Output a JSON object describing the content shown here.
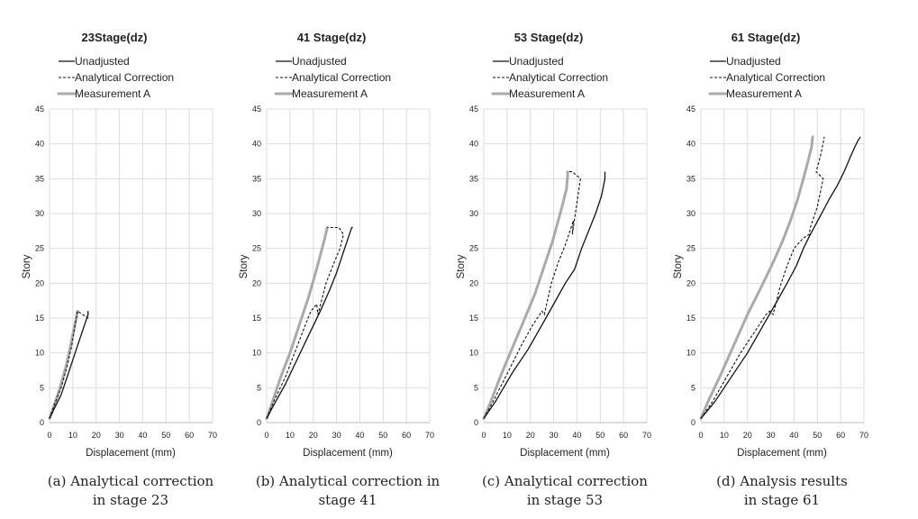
{
  "chart_data": [
    {
      "type": "line",
      "title": "23Stage(dz)",
      "xlabel": "Displacement (mm)",
      "ylabel": "Story",
      "xlim": [
        0,
        70
      ],
      "ylim": [
        0,
        45
      ],
      "xticks": [
        "0",
        "10",
        "20",
        "30",
        "40",
        "50",
        "60",
        "70"
      ],
      "yticks": [
        "0",
        "5",
        "10",
        "15",
        "20",
        "25",
        "30",
        "35",
        "40",
        "45"
      ],
      "grid": true,
      "legend_position": "top-left",
      "series": [
        {
          "name": "Unadjusted",
          "style": "solid",
          "color": "#111111",
          "x": [
            0,
            2,
            5,
            8,
            11,
            13,
            15,
            16.5,
            16.5
          ],
          "y": [
            0.6,
            2,
            4,
            7,
            10,
            12,
            14,
            15.5,
            16
          ]
        },
        {
          "name": "Analytical Correction",
          "style": "dashed",
          "color": "#111111",
          "x": [
            0,
            2,
            5,
            7.5,
            9.5,
            11,
            12,
            16.5,
            16.5
          ],
          "y": [
            0.6,
            2.5,
            5,
            8,
            11,
            14,
            16,
            15,
            16
          ]
        },
        {
          "name": "Measurement A",
          "style": "thick",
          "color": "#aaaaaa",
          "x": [
            0,
            2,
            4.5,
            7,
            9,
            10.5,
            11.5,
            12
          ],
          "y": [
            0.6,
            2.5,
            5,
            8,
            11,
            13.5,
            15,
            16
          ]
        }
      ],
      "caption": [
        "(a) Analytical correction",
        "in stage 23"
      ]
    },
    {
      "type": "line",
      "title": "41 Stage(dz)",
      "xlabel": "Displacement (mm)",
      "ylabel": "Story",
      "xlim": [
        0,
        70
      ],
      "ylim": [
        0,
        45
      ],
      "xticks": [
        "0",
        "10",
        "20",
        "30",
        "40",
        "50",
        "60",
        "70"
      ],
      "yticks": [
        "0",
        "5",
        "10",
        "15",
        "20",
        "25",
        "30",
        "35",
        "40",
        "45"
      ],
      "grid": true,
      "legend_position": "top-left",
      "series": [
        {
          "name": "Unadjusted",
          "style": "solid",
          "color": "#111111",
          "x": [
            0,
            3,
            8,
            13,
            18,
            23,
            27,
            30,
            33,
            35,
            36.5,
            37
          ],
          "y": [
            0.6,
            2.5,
            5.5,
            9,
            12.5,
            16,
            19,
            21.5,
            24.5,
            26.5,
            28,
            28
          ]
        },
        {
          "name": "Analytical Correction",
          "style": "dashed",
          "color": "#111111",
          "x": [
            0,
            3,
            8,
            12,
            16,
            19,
            21.5,
            22,
            25.5,
            29,
            31.5,
            33,
            31,
            26
          ],
          "y": [
            0.6,
            3,
            6.5,
            10,
            13.5,
            16,
            17,
            15.5,
            20,
            23,
            25,
            27,
            28,
            28
          ]
        },
        {
          "name": "Measurement A",
          "style": "thick",
          "color": "#aaaaaa",
          "x": [
            0,
            2.5,
            6,
            10,
            14,
            18,
            21,
            23,
            25,
            26
          ],
          "y": [
            0.6,
            3,
            6.5,
            10,
            14,
            18,
            21.5,
            24,
            26.5,
            28
          ]
        }
      ],
      "caption": [
        "(b) Analytical correction in",
        "stage 41"
      ]
    },
    {
      "type": "line",
      "title": "53 Stage(dz)",
      "xlabel": "Displacement (mm)",
      "ylabel": "Story",
      "xlim": [
        0,
        70
      ],
      "ylim": [
        0,
        45
      ],
      "xticks": [
        "0",
        "10",
        "20",
        "30",
        "40",
        "50",
        "60",
        "70"
      ],
      "yticks": [
        "0",
        "5",
        "10",
        "15",
        "20",
        "25",
        "30",
        "35",
        "40",
        "45"
      ],
      "grid": true,
      "legend_position": "top-left",
      "series": [
        {
          "name": "Unadjusted",
          "style": "solid",
          "color": "#111111",
          "x": [
            0,
            5,
            12,
            19,
            25,
            30,
            35,
            39,
            42,
            45,
            48,
            50.5,
            52,
            52
          ],
          "y": [
            0.6,
            3,
            7,
            10.5,
            14,
            17,
            20,
            22,
            25,
            27.5,
            30,
            32.5,
            35,
            36
          ]
        },
        {
          "name": "Analytical Correction",
          "style": "dashed",
          "color": "#111111",
          "x": [
            0,
            4,
            10,
            16,
            21,
            25,
            26,
            29,
            32,
            35,
            37,
            38.5,
            38,
            41.5,
            38,
            36
          ],
          "y": [
            0.6,
            3,
            7,
            11,
            14,
            16,
            15.5,
            20,
            23,
            25.5,
            27.5,
            29,
            27,
            35,
            36,
            36
          ]
        },
        {
          "name": "Measurement A",
          "style": "thick",
          "color": "#aaaaaa",
          "x": [
            0,
            3,
            7,
            12,
            17,
            22,
            26,
            29.5,
            32,
            34,
            35.5,
            36,
            36
          ],
          "y": [
            0.6,
            3,
            6.5,
            10.5,
            14.5,
            18.5,
            22.5,
            26,
            29,
            31.5,
            33.5,
            35.5,
            36
          ]
        }
      ],
      "caption": [
        "(c) Analytical correction",
        "in stage 53"
      ]
    },
    {
      "type": "line",
      "title": "61 Stage(dz)",
      "xlabel": "Displacement (mm)",
      "ylabel": "Story",
      "xlim": [
        0,
        70
      ],
      "ylim": [
        0,
        45
      ],
      "xticks": [
        "0",
        "10",
        "20",
        "30",
        "40",
        "50",
        "60",
        "70"
      ],
      "yticks": [
        "0",
        "5",
        "10",
        "15",
        "20",
        "25",
        "30",
        "35",
        "40",
        "45"
      ],
      "grid": true,
      "legend_position": "top-left",
      "series": [
        {
          "name": "Unadjusted",
          "style": "solid",
          "color": "#111111",
          "x": [
            0,
            6,
            13,
            20,
            26,
            32,
            37,
            41,
            44,
            47,
            51,
            55,
            58.5,
            61.5,
            64,
            66,
            67.5,
            68.5
          ],
          "y": [
            0.6,
            3,
            6.5,
            10,
            13.5,
            17,
            20,
            22.5,
            25,
            27,
            29.5,
            32,
            34,
            36,
            38,
            39.5,
            40.5,
            41
          ]
        },
        {
          "name": "Analytical Correction",
          "style": "dashed",
          "color": "#111111",
          "x": [
            0,
            5,
            11,
            17,
            23,
            28,
            29.5,
            31,
            34,
            37,
            40,
            44,
            46.5,
            47,
            50,
            52.5,
            49.5,
            51.5,
            53
          ],
          "y": [
            0.6,
            3,
            6.5,
            10,
            13,
            15.5,
            16,
            15.5,
            19.5,
            22.5,
            25,
            26.5,
            27,
            28,
            31,
            35,
            36,
            38.5,
            41
          ]
        },
        {
          "name": "Measurement A",
          "style": "thick",
          "color": "#aaaaaa",
          "x": [
            0,
            3,
            8,
            14,
            20,
            26,
            31,
            35,
            38.5,
            41.5,
            44,
            46,
            47.5,
            48
          ],
          "y": [
            0.6,
            3,
            6.5,
            11,
            15.5,
            19.5,
            23,
            26,
            29,
            32,
            35,
            37.5,
            39.5,
            41
          ]
        }
      ],
      "caption": [
        "(d) Analysis results",
        "in stage 61"
      ]
    }
  ]
}
